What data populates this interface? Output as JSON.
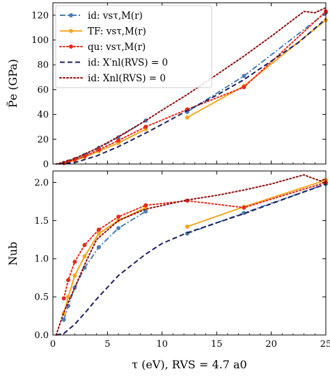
{
  "chart_data": [
    {
      "type": "line",
      "ylabel": "P̃e (GPa)",
      "xlim": [
        0,
        25
      ],
      "ylim": [
        0,
        130
      ],
      "x_ticks": [
        "0",
        "5",
        "10",
        "15",
        "20",
        "25"
      ],
      "y_ticks": [
        "0",
        "20",
        "40",
        "60",
        "80",
        "100",
        "120"
      ],
      "legend_position": "top-left",
      "grid": false,
      "series": [
        {
          "name": "id: vsτ,M(r)",
          "color": "#4a7eb3",
          "style": "dashdot",
          "marker": true,
          "segments": [
            {
              "x": [
                1.0,
                1.4,
                2.0,
                2.9,
                4.2,
                6.0,
                8.5
              ],
              "y": [
                1.0,
                2.0,
                3.9,
                7.3,
                13.0,
                21.5,
                35.0
              ]
            },
            {
              "x": [
                12.3,
                17.5,
                25.0
              ],
              "y": [
                42.0,
                71.0,
                122.0
              ]
            }
          ]
        },
        {
          "name": "TF: vsτ,M(r)",
          "color": "#f5a623",
          "style": "solid",
          "marker": true,
          "segments": [
            {
              "x": [
                1.0,
                1.4,
                2.0,
                2.9,
                4.2,
                6.0,
                8.5
              ],
              "y": [
                0.7,
                1.5,
                3.0,
                5.6,
                10.3,
                17.0,
                28.0
              ]
            },
            {
              "x": [
                12.3,
                17.5,
                25.0
              ],
              "y": [
                37.5,
                63.0,
                116.0
              ]
            }
          ]
        },
        {
          "name": "qu: vsτ,M(r)",
          "color": "#e8291c",
          "style": "dotted",
          "marker": true,
          "segments": [
            {
              "x": [
                1.0,
                1.4,
                2.0,
                2.9,
                4.2,
                6.0,
                8.5,
                12.3,
                17.5,
                25.0
              ],
              "y": [
                0.8,
                1.8,
                3.5,
                6.3,
                11.5,
                19.0,
                30.0,
                44.0,
                62.0,
                123.0
              ]
            }
          ]
        },
        {
          "name": "id: X′nl(RVS) = 0",
          "color": "#1b1f5e",
          "style": "dashed",
          "marker": false,
          "segments": [
            {
              "x": [
                0.5,
                2.0,
                4.0,
                6.0,
                8.5,
                10.0,
                12.3,
                15.0,
                17.5,
                20.0,
                22.5,
                25.0
              ],
              "y": [
                0.0,
                1.2,
                6.5,
                14.0,
                25.0,
                32.0,
                43.0,
                55.5,
                68.0,
                83.0,
                98.0,
                117.0
              ]
            }
          ]
        },
        {
          "name": "id: Xnl(RVS) = 0",
          "color": "#8b0d0d",
          "style": "dotted",
          "marker": false,
          "segments": [
            {
              "x": [
                0.3,
                1.0,
                2.0,
                4.0,
                6.0,
                8.5,
                10.0,
                12.3,
                15.0,
                17.5,
                20.0,
                23.0,
                24.0,
                25.0
              ],
              "y": [
                0.0,
                1.5,
                4.5,
                12.5,
                22.0,
                35.0,
                43.5,
                56.0,
                72.0,
                87.0,
                103.0,
                123.0,
                122.0,
                126.0
              ]
            }
          ]
        }
      ]
    },
    {
      "type": "line",
      "xlabel": "τ (eV),  RVS = 4.7 a0",
      "ylabel": "Nub",
      "xlim": [
        0,
        25
      ],
      "ylim": [
        0,
        2.15
      ],
      "x_ticks": [
        "0",
        "5",
        "10",
        "15",
        "20",
        "25"
      ],
      "y_ticks": [
        "0.0",
        "0.5",
        "1.0",
        "1.5",
        "2.0"
      ],
      "grid": false,
      "series": [
        {
          "name": "id: vsτ,M(r)",
          "color": "#4a7eb3",
          "style": "dashdot",
          "marker": true,
          "segments": [
            {
              "x": [
                1.0,
                1.4,
                2.0,
                2.9,
                4.2,
                6.0,
                8.5
              ],
              "y": [
                0.2,
                0.38,
                0.62,
                0.88,
                1.15,
                1.4,
                1.62
              ]
            },
            {
              "x": [
                12.3,
                17.5,
                25.0
              ],
              "y": [
                1.33,
                1.6,
                1.98
              ]
            }
          ]
        },
        {
          "name": "TF: vsτ,M(r)",
          "color": "#f5a623",
          "style": "solid",
          "marker": true,
          "segments": [
            {
              "x": [
                1.0,
                1.4,
                2.0,
                2.9,
                4.2,
                6.0,
                8.5
              ],
              "y": [
                0.28,
                0.5,
                0.78,
                1.03,
                1.33,
                1.5,
                1.67
              ]
            },
            {
              "x": [
                12.3,
                17.5,
                25.0
              ],
              "y": [
                1.42,
                1.68,
                2.03
              ]
            }
          ]
        },
        {
          "name": "qu: vsτ,M(r)",
          "color": "#e8291c",
          "style": "dotted",
          "marker": true,
          "segments": [
            {
              "x": [
                1.0,
                1.4,
                2.0,
                2.9,
                4.2,
                6.0,
                8.5,
                12.3,
                17.5,
                25.0
              ],
              "y": [
                0.48,
                0.72,
                0.96,
                1.18,
                1.38,
                1.55,
                1.7,
                1.76,
                1.67,
                2.0
              ]
            }
          ]
        },
        {
          "name": "id: X′nl(RVS) = 0",
          "color": "#1b1f5e",
          "style": "dashed",
          "marker": false,
          "segments": [
            {
              "x": [
                0.3,
                1.0,
                2.0,
                3.0,
                4.0,
                6.0,
                8.5,
                10.0,
                12.3,
                15.0,
                17.5,
                20.0,
                22.5,
                25.0
              ],
              "y": [
                0.0,
                0.02,
                0.14,
                0.3,
                0.47,
                0.78,
                1.06,
                1.2,
                1.34,
                1.47,
                1.59,
                1.72,
                1.85,
                1.98
              ]
            }
          ]
        },
        {
          "name": "id: Xnl(RVS) = 0",
          "color": "#8b0d0d",
          "style": "dotted",
          "marker": false,
          "segments": [
            {
              "x": [
                0.3,
                1.0,
                2.0,
                3.0,
                4.0,
                6.0,
                8.5,
                12.3,
                15.0,
                17.5,
                20.0,
                23.0,
                23.5,
                24.5,
                25.0
              ],
              "y": [
                0.0,
                0.3,
                0.62,
                0.95,
                1.25,
                1.5,
                1.65,
                1.77,
                1.83,
                1.9,
                1.98,
                2.1,
                2.07,
                2.02,
                2.05
              ]
            }
          ]
        }
      ]
    }
  ]
}
